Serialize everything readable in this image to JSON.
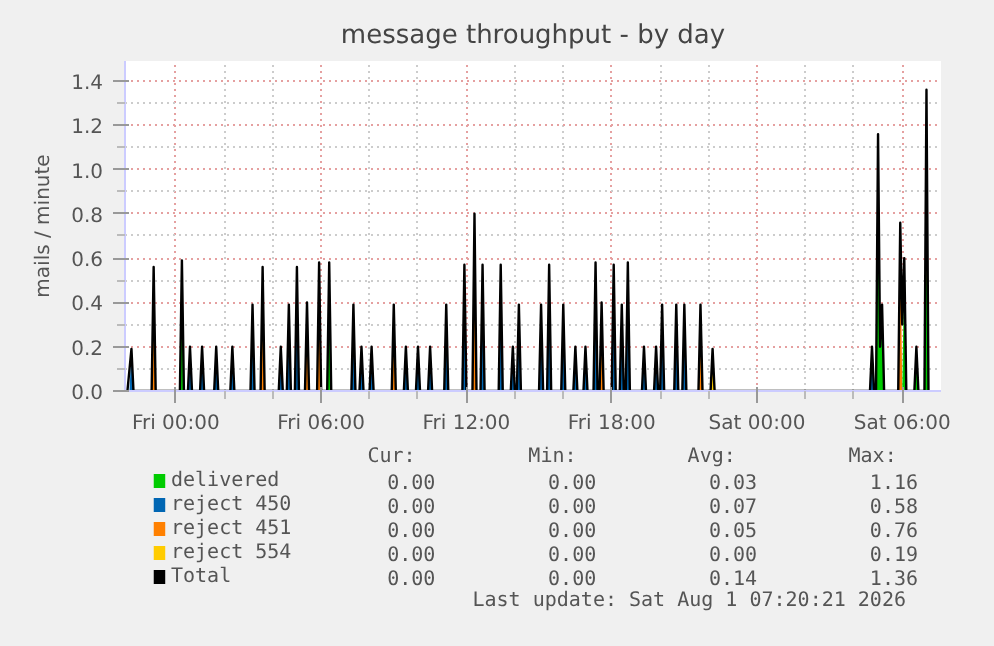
{
  "chart_data": {
    "type": "area",
    "title": "message throughput - by day",
    "ylabel": "mails / minute",
    "xlim": [
      "2026-07-30T21:54",
      "2026-08-01T07:36"
    ],
    "ylim": [
      0,
      1.49
    ],
    "xticks": [
      {
        "value": "2026-07-31T00:00",
        "label": "Fri 00:00"
      },
      {
        "value": "2026-07-31T06:00",
        "label": "Fri 06:00"
      },
      {
        "value": "2026-07-31T12:00",
        "label": "Fri 12:00"
      },
      {
        "value": "2026-07-31T18:00",
        "label": "Fri 18:00"
      },
      {
        "value": "2026-08-01T00:00",
        "label": "Sat 00:00"
      },
      {
        "value": "2026-08-01T06:00",
        "label": "Sat 06:00"
      }
    ],
    "yticks": [
      {
        "value": 0,
        "label": "0.0"
      },
      {
        "value": 0.2,
        "label": "0.2"
      },
      {
        "value": 0.4,
        "label": "0.4"
      },
      {
        "value": 0.6,
        "label": "0.6"
      },
      {
        "value": 0.8,
        "label": "0.8"
      },
      {
        "value": 1,
        "label": "1.0"
      },
      {
        "value": 1.2,
        "label": "1.2"
      },
      {
        "value": 1.4,
        "label": "1.4"
      }
    ],
    "grid": true,
    "legend": "bottom",
    "series": [
      {
        "name": "delivered",
        "color": "#00cc00",
        "x": [
          "2026-07-31T00:10",
          "2026-07-31T00:15",
          "2026-07-31T00:20",
          "2026-07-31T06:15",
          "2026-07-31T06:20",
          "2026-07-31T06:25",
          "2026-08-01T04:55",
          "2026-08-01T05:00",
          "2026-08-01T05:05",
          "2026-08-01T05:10",
          "2026-08-01T05:15",
          "2026-08-01T06:00",
          "2026-08-01T06:05",
          "2026-08-01T06:10",
          "2026-08-01T06:30",
          "2026-08-01T06:35",
          "2026-08-01T06:40",
          "2026-08-01T06:55",
          "2026-08-01T07:00",
          "2026-08-01T07:05"
        ],
        "values": [
          0,
          0.59,
          0,
          0,
          0.58,
          0,
          0,
          1.16,
          0.2,
          0.39,
          0,
          0,
          0.6,
          0,
          0,
          0.2,
          0,
          0,
          0.6,
          0
        ]
      },
      {
        "name": "reject 450",
        "color": "#0066b3",
        "x": [
          "2026-07-30T22:05",
          "2026-07-30T22:10",
          "2026-07-30T22:15",
          "2026-07-31T00:30",
          "2026-07-31T00:35",
          "2026-07-31T00:40",
          "2026-07-31T01:00",
          "2026-07-31T01:05",
          "2026-07-31T01:10",
          "2026-07-31T01:35",
          "2026-07-31T01:40",
          "2026-07-31T01:45",
          "2026-07-31T02:15",
          "2026-07-31T02:20",
          "2026-07-31T02:25",
          "2026-07-31T03:05",
          "2026-07-31T03:10",
          "2026-07-31T03:15",
          "2026-07-31T04:15",
          "2026-07-31T04:20",
          "2026-07-31T04:25",
          "2026-07-31T04:35",
          "2026-07-31T04:40",
          "2026-07-31T04:45",
          "2026-07-31T04:55",
          "2026-07-31T05:00",
          "2026-07-31T05:05",
          "2026-07-31T07:15",
          "2026-07-31T07:20",
          "2026-07-31T07:25",
          "2026-07-31T07:35",
          "2026-07-31T07:40",
          "2026-07-31T07:45",
          "2026-07-31T08:00",
          "2026-07-31T08:05",
          "2026-07-31T08:10",
          "2026-07-31T09:25",
          "2026-07-31T09:30",
          "2026-07-31T09:35",
          "2026-07-31T09:55",
          "2026-07-31T10:00",
          "2026-07-31T10:05",
          "2026-07-31T10:25",
          "2026-07-31T10:30",
          "2026-07-31T10:35",
          "2026-07-31T11:05",
          "2026-07-31T11:10",
          "2026-07-31T11:15",
          "2026-07-31T11:50",
          "2026-07-31T11:55",
          "2026-07-31T12:00",
          "2026-07-31T12:35",
          "2026-07-31T12:40",
          "2026-07-31T12:45",
          "2026-07-31T13:20",
          "2026-07-31T13:25",
          "2026-07-31T13:30",
          "2026-07-31T13:50",
          "2026-07-31T13:55",
          "2026-07-31T14:00",
          "2026-07-31T14:05",
          "2026-07-31T14:10",
          "2026-07-31T14:15",
          "2026-07-31T15:00",
          "2026-07-31T15:05",
          "2026-07-31T15:10",
          "2026-07-31T15:20",
          "2026-07-31T15:25",
          "2026-07-31T15:30",
          "2026-07-31T15:55",
          "2026-07-31T16:00",
          "2026-07-31T16:05",
          "2026-07-31T16:25",
          "2026-07-31T16:30",
          "2026-07-31T16:35",
          "2026-07-31T16:50",
          "2026-07-31T16:55",
          "2026-07-31T17:00",
          "2026-07-31T17:15",
          "2026-07-31T17:20",
          "2026-07-31T17:25",
          "2026-07-31T18:00",
          "2026-07-31T18:05",
          "2026-07-31T18:10",
          "2026-07-31T18:20",
          "2026-07-31T18:25",
          "2026-07-31T18:30",
          "2026-07-31T18:35",
          "2026-07-31T18:40",
          "2026-07-31T18:45",
          "2026-07-31T19:15",
          "2026-07-31T19:20",
          "2026-07-31T19:25",
          "2026-07-31T19:45",
          "2026-07-31T19:50",
          "2026-07-31T19:55",
          "2026-07-31T20:00",
          "2026-07-31T20:05",
          "2026-07-31T20:10",
          "2026-07-31T20:35",
          "2026-07-31T20:40",
          "2026-07-31T20:45",
          "2026-07-31T20:55",
          "2026-07-31T21:00",
          "2026-07-31T21:05",
          "2026-08-01T04:40",
          "2026-08-01T04:45",
          "2026-08-01T04:50"
        ],
        "values": [
          0,
          0.19,
          0,
          0,
          0.2,
          0,
          0,
          0.2,
          0,
          0,
          0.2,
          0,
          0,
          0.2,
          0,
          0,
          0.39,
          0,
          0,
          0.2,
          0,
          0,
          0.39,
          0,
          0,
          0.56,
          0,
          0,
          0.39,
          0,
          0,
          0.2,
          0,
          0,
          0.2,
          0,
          0,
          0.2,
          0,
          0,
          0.2,
          0,
          0,
          0.2,
          0,
          0,
          0.39,
          0,
          0,
          0.57,
          0,
          0,
          0.57,
          0,
          0,
          0.57,
          0,
          0,
          0.2,
          0,
          0,
          0.39,
          0,
          0,
          0.39,
          0,
          0,
          0.57,
          0,
          0,
          0.39,
          0,
          0,
          0.2,
          0,
          0,
          0.2,
          0,
          0,
          0.58,
          0,
          0,
          0.57,
          0,
          0,
          0.39,
          0,
          0,
          0.58,
          0,
          0,
          0.2,
          0,
          0,
          0.2,
          0,
          0,
          0.39,
          0,
          0,
          0.39,
          0,
          0,
          0.39,
          0,
          0,
          0.2,
          0
        ]
      },
      {
        "name": "reject 451",
        "color": "#ff8000",
        "x": [
          "2026-07-30T23:00",
          "2026-07-30T23:05",
          "2026-07-30T23:10",
          "2026-07-31T03:30",
          "2026-07-31T03:35",
          "2026-07-31T03:40",
          "2026-07-31T05:20",
          "2026-07-31T05:25",
          "2026-07-31T05:30",
          "2026-07-31T05:50",
          "2026-07-31T05:55",
          "2026-07-31T06:00",
          "2026-07-31T08:55",
          "2026-07-31T09:00",
          "2026-07-31T09:05",
          "2026-07-31T12:15",
          "2026-07-31T12:20",
          "2026-07-31T12:25",
          "2026-07-31T17:30",
          "2026-07-31T17:35",
          "2026-07-31T17:40",
          "2026-07-31T21:35",
          "2026-07-31T21:40",
          "2026-07-31T21:45",
          "2026-08-01T05:50",
          "2026-08-01T05:55",
          "2026-08-01T06:00",
          "2026-08-01T06:55",
          "2026-08-01T07:00",
          "2026-08-01T07:05"
        ],
        "values": [
          0,
          0.56,
          0,
          0,
          0.56,
          0,
          0,
          0.4,
          0,
          0,
          0.58,
          0,
          0,
          0.39,
          0,
          0,
          0.76,
          0,
          0,
          0.4,
          0,
          0,
          0.39,
          0,
          0,
          0.76,
          0,
          0,
          0.76,
          0
        ]
      },
      {
        "name": "reject 554",
        "color": "#ffcc00",
        "x": [
          "2026-07-31T22:05",
          "2026-07-31T22:10",
          "2026-07-31T22:15"
        ],
        "values": [
          0,
          0.19,
          0
        ]
      },
      {
        "name": "Total",
        "color": "#000000",
        "type": "line",
        "x": [
          "2026-07-30T22:00",
          "2026-07-30T22:10",
          "2026-07-30T22:15",
          "2026-07-30T23:00",
          "2026-07-30T23:05",
          "2026-07-30T23:10",
          "2026-07-31T00:10",
          "2026-07-31T00:15",
          "2026-07-31T00:20",
          "2026-07-31T00:30",
          "2026-07-31T00:35",
          "2026-07-31T00:40",
          "2026-07-31T01:00",
          "2026-07-31T01:05",
          "2026-07-31T01:10",
          "2026-07-31T01:35",
          "2026-07-31T01:40",
          "2026-07-31T01:45",
          "2026-07-31T02:15",
          "2026-07-31T02:20",
          "2026-07-31T02:25",
          "2026-07-31T03:05",
          "2026-07-31T03:10",
          "2026-07-31T03:15",
          "2026-07-31T03:30",
          "2026-07-31T03:35",
          "2026-07-31T03:40",
          "2026-07-31T04:15",
          "2026-07-31T04:20",
          "2026-07-31T04:25",
          "2026-07-31T04:35",
          "2026-07-31T04:40",
          "2026-07-31T04:45",
          "2026-07-31T04:55",
          "2026-07-31T05:00",
          "2026-07-31T05:05",
          "2026-07-31T05:20",
          "2026-07-31T05:25",
          "2026-07-31T05:30",
          "2026-07-31T05:50",
          "2026-07-31T05:55",
          "2026-07-31T06:00",
          "2026-07-31T06:15",
          "2026-07-31T06:20",
          "2026-07-31T06:25",
          "2026-07-31T07:15",
          "2026-07-31T07:20",
          "2026-07-31T07:25",
          "2026-07-31T07:35",
          "2026-07-31T07:40",
          "2026-07-31T07:45",
          "2026-07-31T08:00",
          "2026-07-31T08:05",
          "2026-07-31T08:10",
          "2026-07-31T08:55",
          "2026-07-31T09:00",
          "2026-07-31T09:05",
          "2026-07-31T09:25",
          "2026-07-31T09:30",
          "2026-07-31T09:35",
          "2026-07-31T09:55",
          "2026-07-31T10:00",
          "2026-07-31T10:05",
          "2026-07-31T10:25",
          "2026-07-31T10:30",
          "2026-07-31T10:35",
          "2026-07-31T11:05",
          "2026-07-31T11:10",
          "2026-07-31T11:15",
          "2026-07-31T11:50",
          "2026-07-31T11:55",
          "2026-07-31T12:00",
          "2026-07-31T12:15",
          "2026-07-31T12:20",
          "2026-07-31T12:25",
          "2026-07-31T12:35",
          "2026-07-31T12:40",
          "2026-07-31T12:45",
          "2026-07-31T13:20",
          "2026-07-31T13:25",
          "2026-07-31T13:30",
          "2026-07-31T13:50",
          "2026-07-31T13:55",
          "2026-07-31T14:00",
          "2026-07-31T14:05",
          "2026-07-31T14:10",
          "2026-07-31T14:15",
          "2026-07-31T15:00",
          "2026-07-31T15:05",
          "2026-07-31T15:10",
          "2026-07-31T15:20",
          "2026-07-31T15:25",
          "2026-07-31T15:30",
          "2026-07-31T15:55",
          "2026-07-31T16:00",
          "2026-07-31T16:05",
          "2026-07-31T16:25",
          "2026-07-31T16:30",
          "2026-07-31T16:35",
          "2026-07-31T16:50",
          "2026-07-31T16:55",
          "2026-07-31T17:00",
          "2026-07-31T17:15",
          "2026-07-31T17:20",
          "2026-07-31T17:25",
          "2026-07-31T17:30",
          "2026-07-31T17:35",
          "2026-07-31T17:40",
          "2026-07-31T18:00",
          "2026-07-31T18:05",
          "2026-07-31T18:10",
          "2026-07-31T18:20",
          "2026-07-31T18:25",
          "2026-07-31T18:30",
          "2026-07-31T18:35",
          "2026-07-31T18:40",
          "2026-07-31T18:45",
          "2026-07-31T19:15",
          "2026-07-31T19:20",
          "2026-07-31T19:25",
          "2026-07-31T19:45",
          "2026-07-31T19:50",
          "2026-07-31T19:55",
          "2026-07-31T20:00",
          "2026-07-31T20:05",
          "2026-07-31T20:10",
          "2026-07-31T20:35",
          "2026-07-31T20:40",
          "2026-07-31T20:45",
          "2026-07-31T20:55",
          "2026-07-31T21:00",
          "2026-07-31T21:05",
          "2026-07-31T21:35",
          "2026-07-31T21:40",
          "2026-07-31T21:45",
          "2026-07-31T22:05",
          "2026-07-31T22:10",
          "2026-07-31T22:15",
          "2026-08-01T04:40",
          "2026-08-01T04:45",
          "2026-08-01T04:50",
          "2026-08-01T04:55",
          "2026-08-01T05:00",
          "2026-08-01T05:05",
          "2026-08-01T05:10",
          "2026-08-01T05:15",
          "2026-08-01T05:50",
          "2026-08-01T05:55",
          "2026-08-01T06:00",
          "2026-08-01T06:05",
          "2026-08-01T06:10",
          "2026-08-01T06:30",
          "2026-08-01T06:35",
          "2026-08-01T06:40",
          "2026-08-01T06:55",
          "2026-08-01T07:00",
          "2026-08-01T07:05"
        ],
        "values": [
          0,
          0.19,
          0,
          0,
          0.56,
          0,
          0,
          0.59,
          0,
          0,
          0.2,
          0,
          0,
          0.2,
          0,
          0,
          0.2,
          0,
          0,
          0.2,
          0,
          0,
          0.39,
          0,
          0,
          0.56,
          0,
          0,
          0.2,
          0,
          0,
          0.39,
          0,
          0,
          0.56,
          0,
          0,
          0.4,
          0,
          0,
          0.58,
          0,
          0,
          0.58,
          0,
          0,
          0.39,
          0,
          0,
          0.2,
          0,
          0,
          0.2,
          0,
          0,
          0.39,
          0,
          0,
          0.2,
          0,
          0,
          0.2,
          0,
          0,
          0.2,
          0,
          0,
          0.39,
          0,
          0,
          0.57,
          0,
          0,
          0.8,
          0,
          0,
          0.57,
          0,
          0,
          0.57,
          0,
          0,
          0.2,
          0,
          0,
          0.39,
          0,
          0,
          0.39,
          0,
          0,
          0.57,
          0,
          0,
          0.39,
          0,
          0,
          0.2,
          0,
          0,
          0.2,
          0,
          0,
          0.58,
          0,
          0,
          0.4,
          0,
          0,
          0.57,
          0,
          0,
          0.39,
          0,
          0,
          0.58,
          0,
          0,
          0.2,
          0,
          0,
          0.2,
          0,
          0,
          0.39,
          0,
          0,
          0.39,
          0,
          0,
          0.39,
          0,
          0,
          0.39,
          0,
          0,
          0.19,
          0,
          0,
          0.2,
          0,
          0,
          1.16,
          0.2,
          0.39,
          0,
          0,
          0.76,
          0.3,
          0.6,
          0,
          0,
          0.2,
          0,
          0,
          1.36,
          0
        ]
      }
    ],
    "annotations": [
      "Cur:",
      "Min:",
      "Avg:",
      "Max:",
      "0.00",
      "0.00",
      "0.03",
      "1.16",
      "0.00",
      "0.00",
      "0.07",
      "0.58",
      "0.00",
      "0.00",
      "0.05",
      "0.76",
      "0.00",
      "0.00",
      "0.00",
      "0.19",
      "0.00",
      "0.00",
      "0.14",
      "1.36",
      "Last update: Sat Aug  1 07:20:21 2026"
    ]
  }
}
